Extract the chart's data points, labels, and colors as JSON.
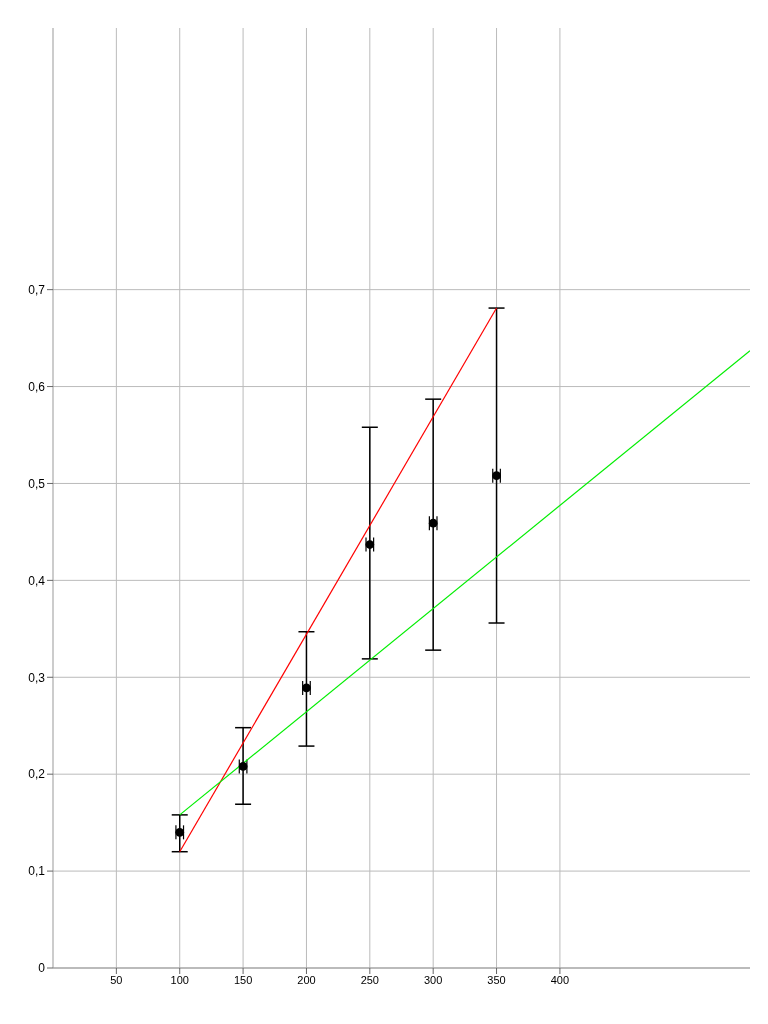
{
  "chart_data": {
    "type": "scatter",
    "x": [
      100,
      150,
      200,
      250,
      300,
      350
    ],
    "series": [
      {
        "color": "#000000",
        "values": [
          0.14,
          0.208,
          0.289,
          0.437,
          0.459,
          0.508
        ],
        "errors": [
          [
            0.12,
            0.158
          ],
          [
            0.169,
            0.248
          ],
          [
            0.229,
            0.347
          ],
          [
            0.319,
            0.558
          ],
          [
            0.328,
            0.587
          ],
          [
            0.356,
            0.681
          ]
        ],
        "xerrors": [
          3,
          3,
          3,
          3,
          3,
          3
        ]
      },
      {
        "type": "line",
        "color": "#ff0000",
        "x": [
          100,
          350
        ],
        "values": [
          0.12,
          0.681
        ]
      },
      {
        "type": "line",
        "color": "#00ee00",
        "x": [
          100,
          550
        ],
        "values": [
          0.158,
          0.637
        ]
      }
    ],
    "xlim": [
      0,
      550
    ],
    "ylim": [
      0,
      0.97
    ],
    "xticks": [
      50,
      100,
      150,
      200,
      250,
      300,
      350,
      400
    ],
    "yticks": [
      {
        "value": 0,
        "label": "0"
      },
      {
        "value": 0.1,
        "label": "0,1"
      },
      {
        "value": 0.2,
        "label": "0,2"
      },
      {
        "value": 0.3,
        "label": "0,3"
      },
      {
        "value": 0.4,
        "label": "0,4"
      },
      {
        "value": 0.5,
        "label": "0,5"
      },
      {
        "value": 0.6,
        "label": "0,6"
      },
      {
        "value": 0.7,
        "label": "0,7"
      }
    ],
    "grid": true
  }
}
